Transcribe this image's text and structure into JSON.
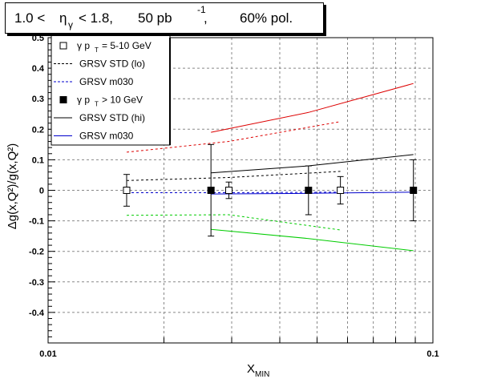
{
  "header": {
    "eta_lo": "1.0 <",
    "eta_sym": "η",
    "eta_sub": "γ",
    "eta_hi": "< 1.8,",
    "lumi": "50 pb",
    "lumi_exp": "-1",
    "lumi_comma": ",",
    "pol": "60% pol."
  },
  "chart_data": {
    "type": "scatter",
    "x_scale": "log",
    "xlim": [
      0.01,
      0.1
    ],
    "ylim": [
      -0.5,
      0.5
    ],
    "grid": true,
    "xlabel": {
      "main": "X",
      "sub": "MIN"
    },
    "ylabel": "Δg(x,Q²)/g(x,Q²)",
    "x_tick_labels": [
      {
        "value": 0.01,
        "label": "0.01"
      },
      {
        "value": 0.1,
        "label": "0.1"
      }
    ],
    "y_ticks": [
      -0.4,
      -0.3,
      -0.2,
      -0.1,
      0,
      0.1,
      0.2,
      0.3,
      0.4,
      0.5
    ],
    "y_tick_labels": [
      "-0.4",
      "-0.3",
      "-0.2",
      "-0.1",
      "0",
      "0.1",
      "0.2",
      "0.3",
      "0.4",
      "0.5"
    ],
    "points": [
      {
        "key": "pT5_10",
        "legend": "γ p",
        "legend_sub": "T",
        "legend_rest": "= 5-10 GeV",
        "marker": "open-square",
        "color": "#000000",
        "x": [
          0.016,
          0.0295,
          0.0575
        ],
        "y": [
          0.0,
          0.0,
          0.0
        ],
        "err": [
          0.052,
          0.027,
          0.045
        ]
      },
      {
        "key": "pT10",
        "legend": "γ p",
        "legend_sub": "T",
        "legend_rest": "> 10 GeV",
        "marker": "filled-square",
        "color": "#000000",
        "x": [
          0.0265,
          0.0475,
          0.089
        ],
        "y": [
          0.0,
          0.0,
          0.0
        ],
        "err": [
          0.15,
          0.08,
          0.1
        ]
      }
    ],
    "curves": [
      {
        "key": "std_lo",
        "legend": "GRSV STD (lo)",
        "color": "#000000",
        "dash": true,
        "x": [
          0.016,
          0.0295,
          0.0575
        ],
        "y": [
          0.032,
          0.042,
          0.062
        ]
      },
      {
        "key": "m030_lo",
        "legend": "GRSV m030",
        "color": "#0000cc",
        "dash": true,
        "x": [
          0.016,
          0.0295,
          0.0575
        ],
        "y": [
          -0.008,
          -0.008,
          -0.006
        ]
      },
      {
        "key": "std_hi",
        "legend": "GRSV STD (hi)",
        "color": "#000000",
        "dash": false,
        "x": [
          0.0265,
          0.0475,
          0.089
        ],
        "y": [
          0.057,
          0.08,
          0.117
        ]
      },
      {
        "key": "m030_hi",
        "legend": "GRSV m030",
        "color": "#0000cc",
        "dash": false,
        "x": [
          0.0265,
          0.0475,
          0.089
        ],
        "y": [
          -0.012,
          -0.01,
          -0.006
        ]
      },
      {
        "key": "red_dash",
        "legend": "",
        "color": "#dd0000",
        "dash": true,
        "x": [
          0.016,
          0.0295,
          0.0575
        ],
        "y": [
          0.125,
          0.16,
          0.225
        ]
      },
      {
        "key": "green_dash",
        "legend": "",
        "color": "#00cc00",
        "dash": true,
        "x": [
          0.016,
          0.0295,
          0.0575
        ],
        "y": [
          -0.082,
          -0.08,
          -0.13
        ]
      },
      {
        "key": "red_solid",
        "legend": "",
        "color": "#dd0000",
        "dash": false,
        "x": [
          0.0265,
          0.0475,
          0.089
        ],
        "y": [
          0.19,
          0.255,
          0.35
        ]
      },
      {
        "key": "green_solid",
        "legend": "",
        "color": "#00cc00",
        "dash": false,
        "x": [
          0.0265,
          0.0475,
          0.089
        ],
        "y": [
          -0.128,
          -0.158,
          -0.198
        ]
      }
    ],
    "legend_order": [
      {
        "kind": "point",
        "key": "pT5_10"
      },
      {
        "kind": "curve",
        "key": "std_lo"
      },
      {
        "kind": "curve",
        "key": "m030_lo"
      },
      {
        "kind": "point",
        "key": "pT10"
      },
      {
        "kind": "curve",
        "key": "std_hi"
      },
      {
        "kind": "curve",
        "key": "m030_hi"
      }
    ]
  }
}
